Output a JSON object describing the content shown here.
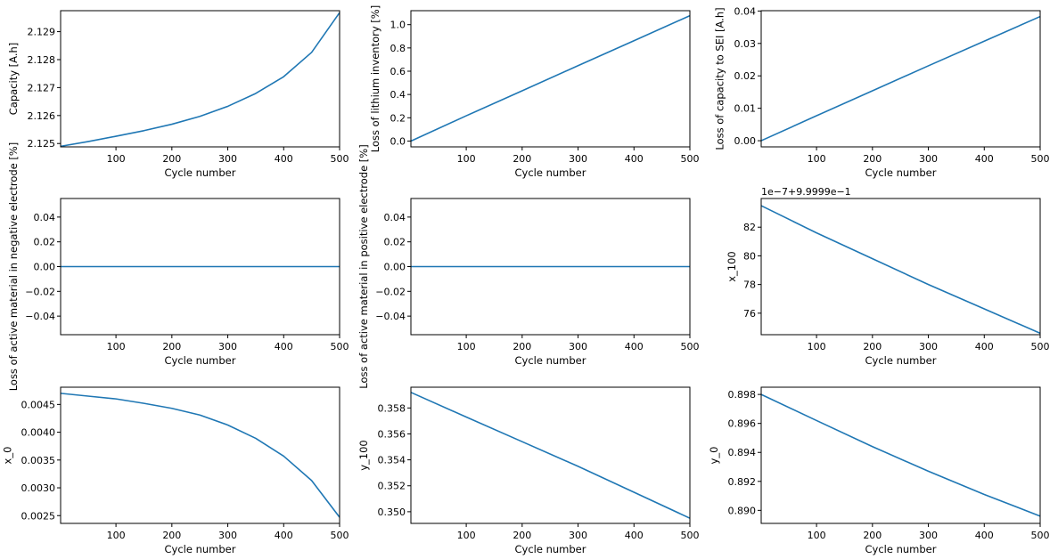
{
  "line_color": "#1f77b4",
  "chart_data": [
    {
      "type": "line",
      "xlabel": "Cycle number",
      "ylabel": "Capacity [A.h]",
      "xlim": [
        1,
        500
      ],
      "ylim": [
        2.12488,
        2.12975
      ],
      "xticks": [
        100,
        200,
        300,
        400,
        500
      ],
      "xtick_labels": [
        "100",
        "200",
        "300",
        "400",
        "500"
      ],
      "yticks": [
        2.125,
        2.126,
        2.127,
        2.128,
        2.129
      ],
      "ytick_labels": [
        "2.125",
        "2.126",
        "2.127",
        "2.128",
        "2.129"
      ],
      "series": [
        {
          "x": [
            1,
            50,
            100,
            150,
            200,
            250,
            300,
            350,
            400,
            450,
            500
          ],
          "y": [
            2.1249,
            2.12507,
            2.12526,
            2.12546,
            2.12569,
            2.12597,
            2.12633,
            2.12679,
            2.12739,
            2.12826,
            2.12968
          ]
        }
      ]
    },
    {
      "type": "line",
      "xlabel": "Cycle number",
      "ylabel": "Loss of lithium inventory [%]",
      "xlim": [
        1,
        500
      ],
      "ylim": [
        -0.05,
        1.12
      ],
      "xticks": [
        100,
        200,
        300,
        400,
        500
      ],
      "xtick_labels": [
        "100",
        "200",
        "300",
        "400",
        "500"
      ],
      "yticks": [
        0.0,
        0.2,
        0.4,
        0.6,
        0.8,
        1.0
      ],
      "ytick_labels": [
        "0.0",
        "0.2",
        "0.4",
        "0.6",
        "0.8",
        "1.0"
      ],
      "series": [
        {
          "x": [
            1,
            100,
            200,
            300,
            400,
            500
          ],
          "y": [
            0.0,
            0.217,
            0.432,
            0.648,
            0.862,
            1.077
          ]
        }
      ]
    },
    {
      "type": "line",
      "xlabel": "Cycle number",
      "ylabel": "Loss of capacity to SEI [A.h]",
      "xlim": [
        1,
        500
      ],
      "ylim": [
        -0.0019,
        0.0401
      ],
      "xticks": [
        100,
        200,
        300,
        400,
        500
      ],
      "xtick_labels": [
        "100",
        "200",
        "300",
        "400",
        "500"
      ],
      "yticks": [
        0.0,
        0.01,
        0.02,
        0.03,
        0.04
      ],
      "ytick_labels": [
        "0.00",
        "0.01",
        "0.02",
        "0.03",
        "0.04"
      ],
      "series": [
        {
          "x": [
            1,
            100,
            200,
            300,
            400,
            500
          ],
          "y": [
            0.0,
            0.0077,
            0.0154,
            0.0231,
            0.0307,
            0.0383
          ]
        }
      ]
    },
    {
      "type": "line",
      "xlabel": "Cycle number",
      "ylabel": "Loss of active material in negative electrode [%]",
      "xlim": [
        1,
        500
      ],
      "ylim": [
        -0.055,
        0.055
      ],
      "xticks": [
        100,
        200,
        300,
        400,
        500
      ],
      "xtick_labels": [
        "100",
        "200",
        "300",
        "400",
        "500"
      ],
      "yticks": [
        -0.04,
        -0.02,
        0.0,
        0.02,
        0.04
      ],
      "ytick_labels": [
        "−0.04",
        "−0.02",
        "0.00",
        "0.02",
        "0.04"
      ],
      "series": [
        {
          "x": [
            1,
            500
          ],
          "y": [
            0.0,
            0.0
          ]
        }
      ]
    },
    {
      "type": "line",
      "xlabel": "Cycle number",
      "ylabel": "Loss of active material in positive electrode [%]",
      "xlim": [
        1,
        500
      ],
      "ylim": [
        -0.055,
        0.055
      ],
      "xticks": [
        100,
        200,
        300,
        400,
        500
      ],
      "xtick_labels": [
        "100",
        "200",
        "300",
        "400",
        "500"
      ],
      "yticks": [
        -0.04,
        -0.02,
        0.0,
        0.02,
        0.04
      ],
      "ytick_labels": [
        "−0.04",
        "−0.02",
        "0.00",
        "0.02",
        "0.04"
      ],
      "series": [
        {
          "x": [
            1,
            500
          ],
          "y": [
            0.0,
            0.0
          ]
        }
      ]
    },
    {
      "type": "line",
      "xlabel": "Cycle number",
      "ylabel": "x_100",
      "offset_text": "1e−7+9.9999e−1",
      "xlim": [
        1,
        500
      ],
      "ylim": [
        74.5,
        84.0
      ],
      "xticks": [
        100,
        200,
        300,
        400,
        500
      ],
      "xtick_labels": [
        "100",
        "200",
        "300",
        "400",
        "500"
      ],
      "yticks": [
        76,
        78,
        80,
        82
      ],
      "ytick_labels": [
        "76",
        "78",
        "80",
        "82"
      ],
      "series": [
        {
          "x": [
            1,
            100,
            200,
            300,
            400,
            500
          ],
          "y": [
            83.5,
            81.6,
            79.8,
            78.0,
            76.3,
            74.6
          ]
        }
      ]
    },
    {
      "type": "line",
      "xlabel": "Cycle number",
      "ylabel": "x_0",
      "xlim": [
        1,
        500
      ],
      "ylim": [
        0.00236,
        0.00481
      ],
      "xticks": [
        100,
        200,
        300,
        400,
        500
      ],
      "xtick_labels": [
        "100",
        "200",
        "300",
        "400",
        "500"
      ],
      "yticks": [
        0.0025,
        0.003,
        0.0035,
        0.004,
        0.0045
      ],
      "ytick_labels": [
        "0.0025",
        "0.0030",
        "0.0035",
        "0.0040",
        "0.0045"
      ],
      "series": [
        {
          "x": [
            1,
            50,
            100,
            150,
            200,
            250,
            300,
            350,
            400,
            450,
            500
          ],
          "y": [
            0.0047,
            0.00465,
            0.0046,
            0.00452,
            0.00443,
            0.00431,
            0.00413,
            0.00389,
            0.00357,
            0.00313,
            0.00247
          ]
        }
      ]
    },
    {
      "type": "line",
      "xlabel": "Cycle number",
      "ylabel": "y_100",
      "xlim": [
        1,
        500
      ],
      "ylim": [
        0.3491,
        0.3596
      ],
      "xticks": [
        100,
        200,
        300,
        400,
        500
      ],
      "xtick_labels": [
        "100",
        "200",
        "300",
        "400",
        "500"
      ],
      "yticks": [
        0.35,
        0.352,
        0.354,
        0.356,
        0.358
      ],
      "ytick_labels": [
        "0.350",
        "0.352",
        "0.354",
        "0.356",
        "0.358"
      ],
      "series": [
        {
          "x": [
            1,
            100,
            200,
            300,
            400,
            500
          ],
          "y": [
            0.3592,
            0.3573,
            0.3554,
            0.3535,
            0.3515,
            0.3495
          ]
        }
      ]
    },
    {
      "type": "line",
      "xlabel": "Cycle number",
      "ylabel": "y_0",
      "xlim": [
        1,
        500
      ],
      "ylim": [
        0.8891,
        0.8985
      ],
      "xticks": [
        100,
        200,
        300,
        400,
        500
      ],
      "xtick_labels": [
        "100",
        "200",
        "300",
        "400",
        "500"
      ],
      "yticks": [
        0.89,
        0.892,
        0.894,
        0.896,
        0.898
      ],
      "ytick_labels": [
        "0.890",
        "0.892",
        "0.894",
        "0.896",
        "0.898"
      ],
      "series": [
        {
          "x": [
            1,
            100,
            200,
            300,
            400,
            500
          ],
          "y": [
            0.898,
            0.8962,
            0.8944,
            0.8927,
            0.8911,
            0.8896
          ]
        }
      ]
    }
  ]
}
